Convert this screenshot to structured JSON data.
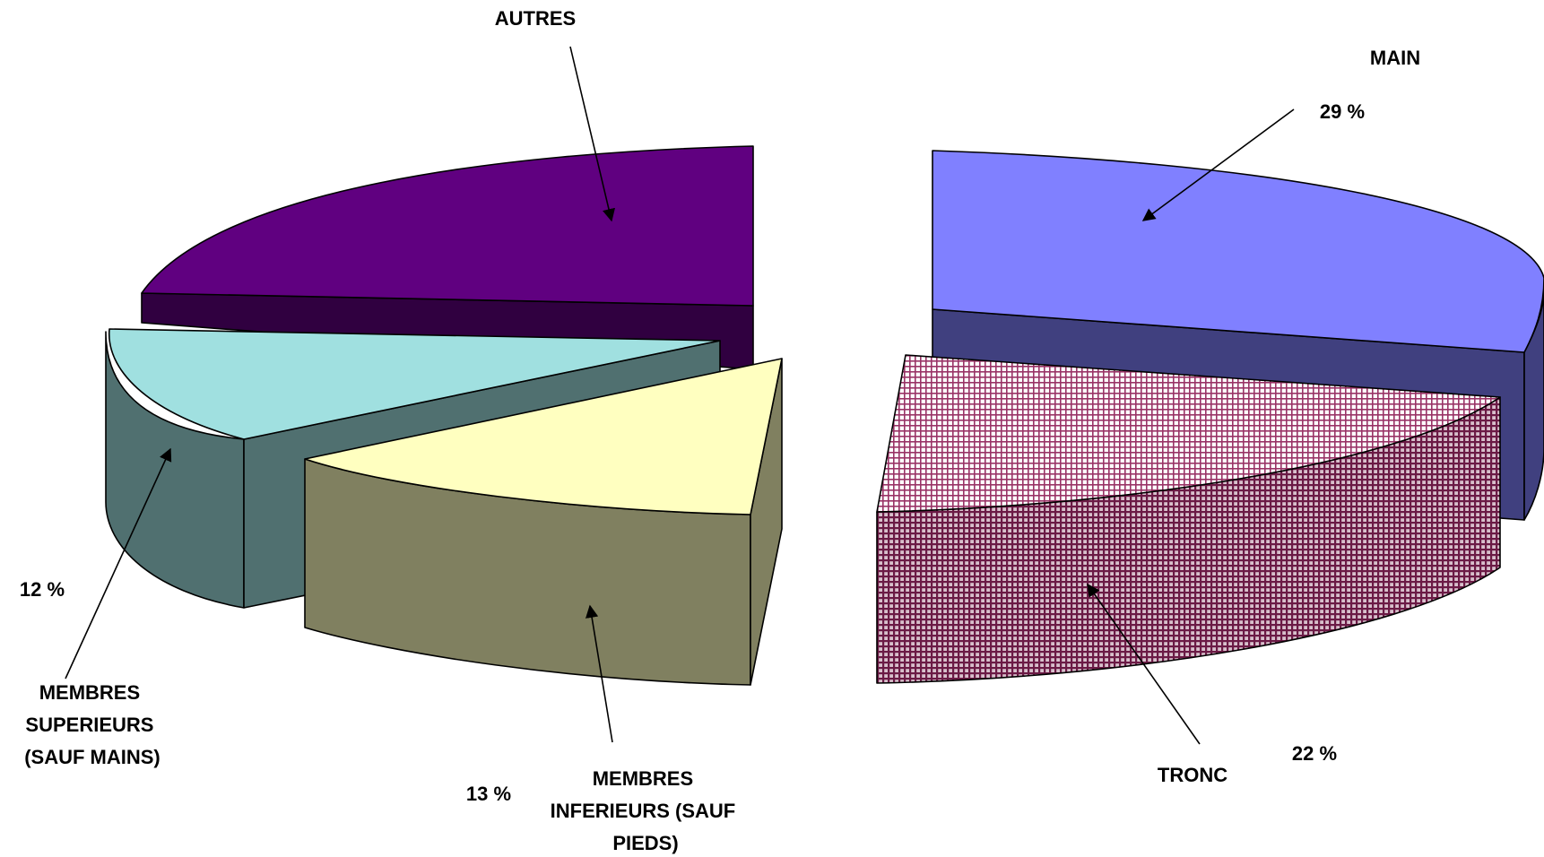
{
  "chart_data": {
    "type": "pie",
    "style": "3d-exploded",
    "slices": [
      {
        "label": "MAIN",
        "value": 29,
        "value_label": "29 %",
        "color": "#8080ff",
        "side_color": "#40407f",
        "pattern": "solid"
      },
      {
        "label": "TRONC",
        "value": 22,
        "value_label": "22 %",
        "color": "#993366",
        "side_color": "#6b1a45",
        "pattern": "checkered"
      },
      {
        "label": "MEMBRES INFERIEURS (SAUF PIEDS)",
        "label_lines": [
          "MEMBRES",
          "INFERIEURS (SAUF",
          "PIEDS)"
        ],
        "value": 13,
        "value_label": "13 %",
        "color": "#ffffc0",
        "side_color": "#808060",
        "pattern": "solid"
      },
      {
        "label": "MEMBRES SUPERIEURS (SAUF MAINS)",
        "label_lines": [
          "MEMBRES",
          "SUPERIEURS",
          "(SAUF MAINS)"
        ],
        "value": 12,
        "value_label": "12 %",
        "color": "#a0e0e0",
        "side_color": "#507070",
        "pattern": "solid"
      },
      {
        "label": "AUTRES",
        "value": 24,
        "value_label": "",
        "color": "#600080",
        "side_color": "#300040",
        "pattern": "solid"
      }
    ],
    "legend": "none"
  }
}
